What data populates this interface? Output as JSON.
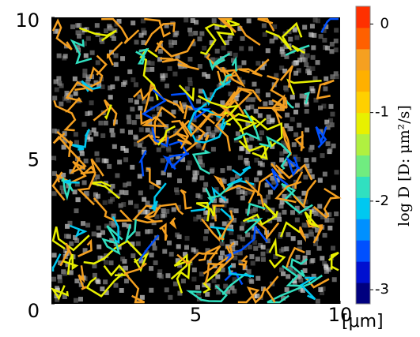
{
  "chart_data": {
    "type": "trajectory-map",
    "xlim": [
      0,
      10
    ],
    "ylim": [
      0,
      10
    ],
    "xticks": [
      5,
      10
    ],
    "yticks": [
      0,
      5,
      10
    ],
    "x_unit": "[μm]",
    "colorbar": {
      "label": "log D  [D: μm²/s]",
      "lim": [
        -3.16,
        0.2
      ],
      "ticks": [
        0,
        -1,
        -2,
        -3
      ],
      "colormap": [
        "#00007f",
        "#0010d0",
        "#0050ff",
        "#0090ff",
        "#00c8f0",
        "#30e0c0",
        "#70ec80",
        "#b0f040",
        "#e8f000",
        "#ffd000",
        "#ffb000",
        "#f5a020",
        "#ff6000",
        "#ff3000"
      ]
    },
    "background": "#000000"
  }
}
